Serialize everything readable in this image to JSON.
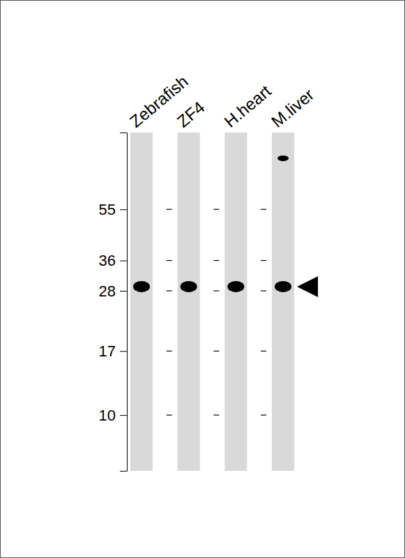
{
  "chart_data": {
    "type": "western_blot",
    "categories": [
      "Zebrafish",
      "ZF4",
      "H.heart",
      "M.liver"
    ],
    "values": [
      29,
      29,
      29,
      29
    ],
    "secondary_values": [
      null,
      null,
      null,
      84
    ],
    "color": "#000000",
    "log": "y",
    "ylim": [
      6.3,
      104
    ],
    "yticks": [
      55,
      36,
      28,
      17,
      10
    ]
  }
}
